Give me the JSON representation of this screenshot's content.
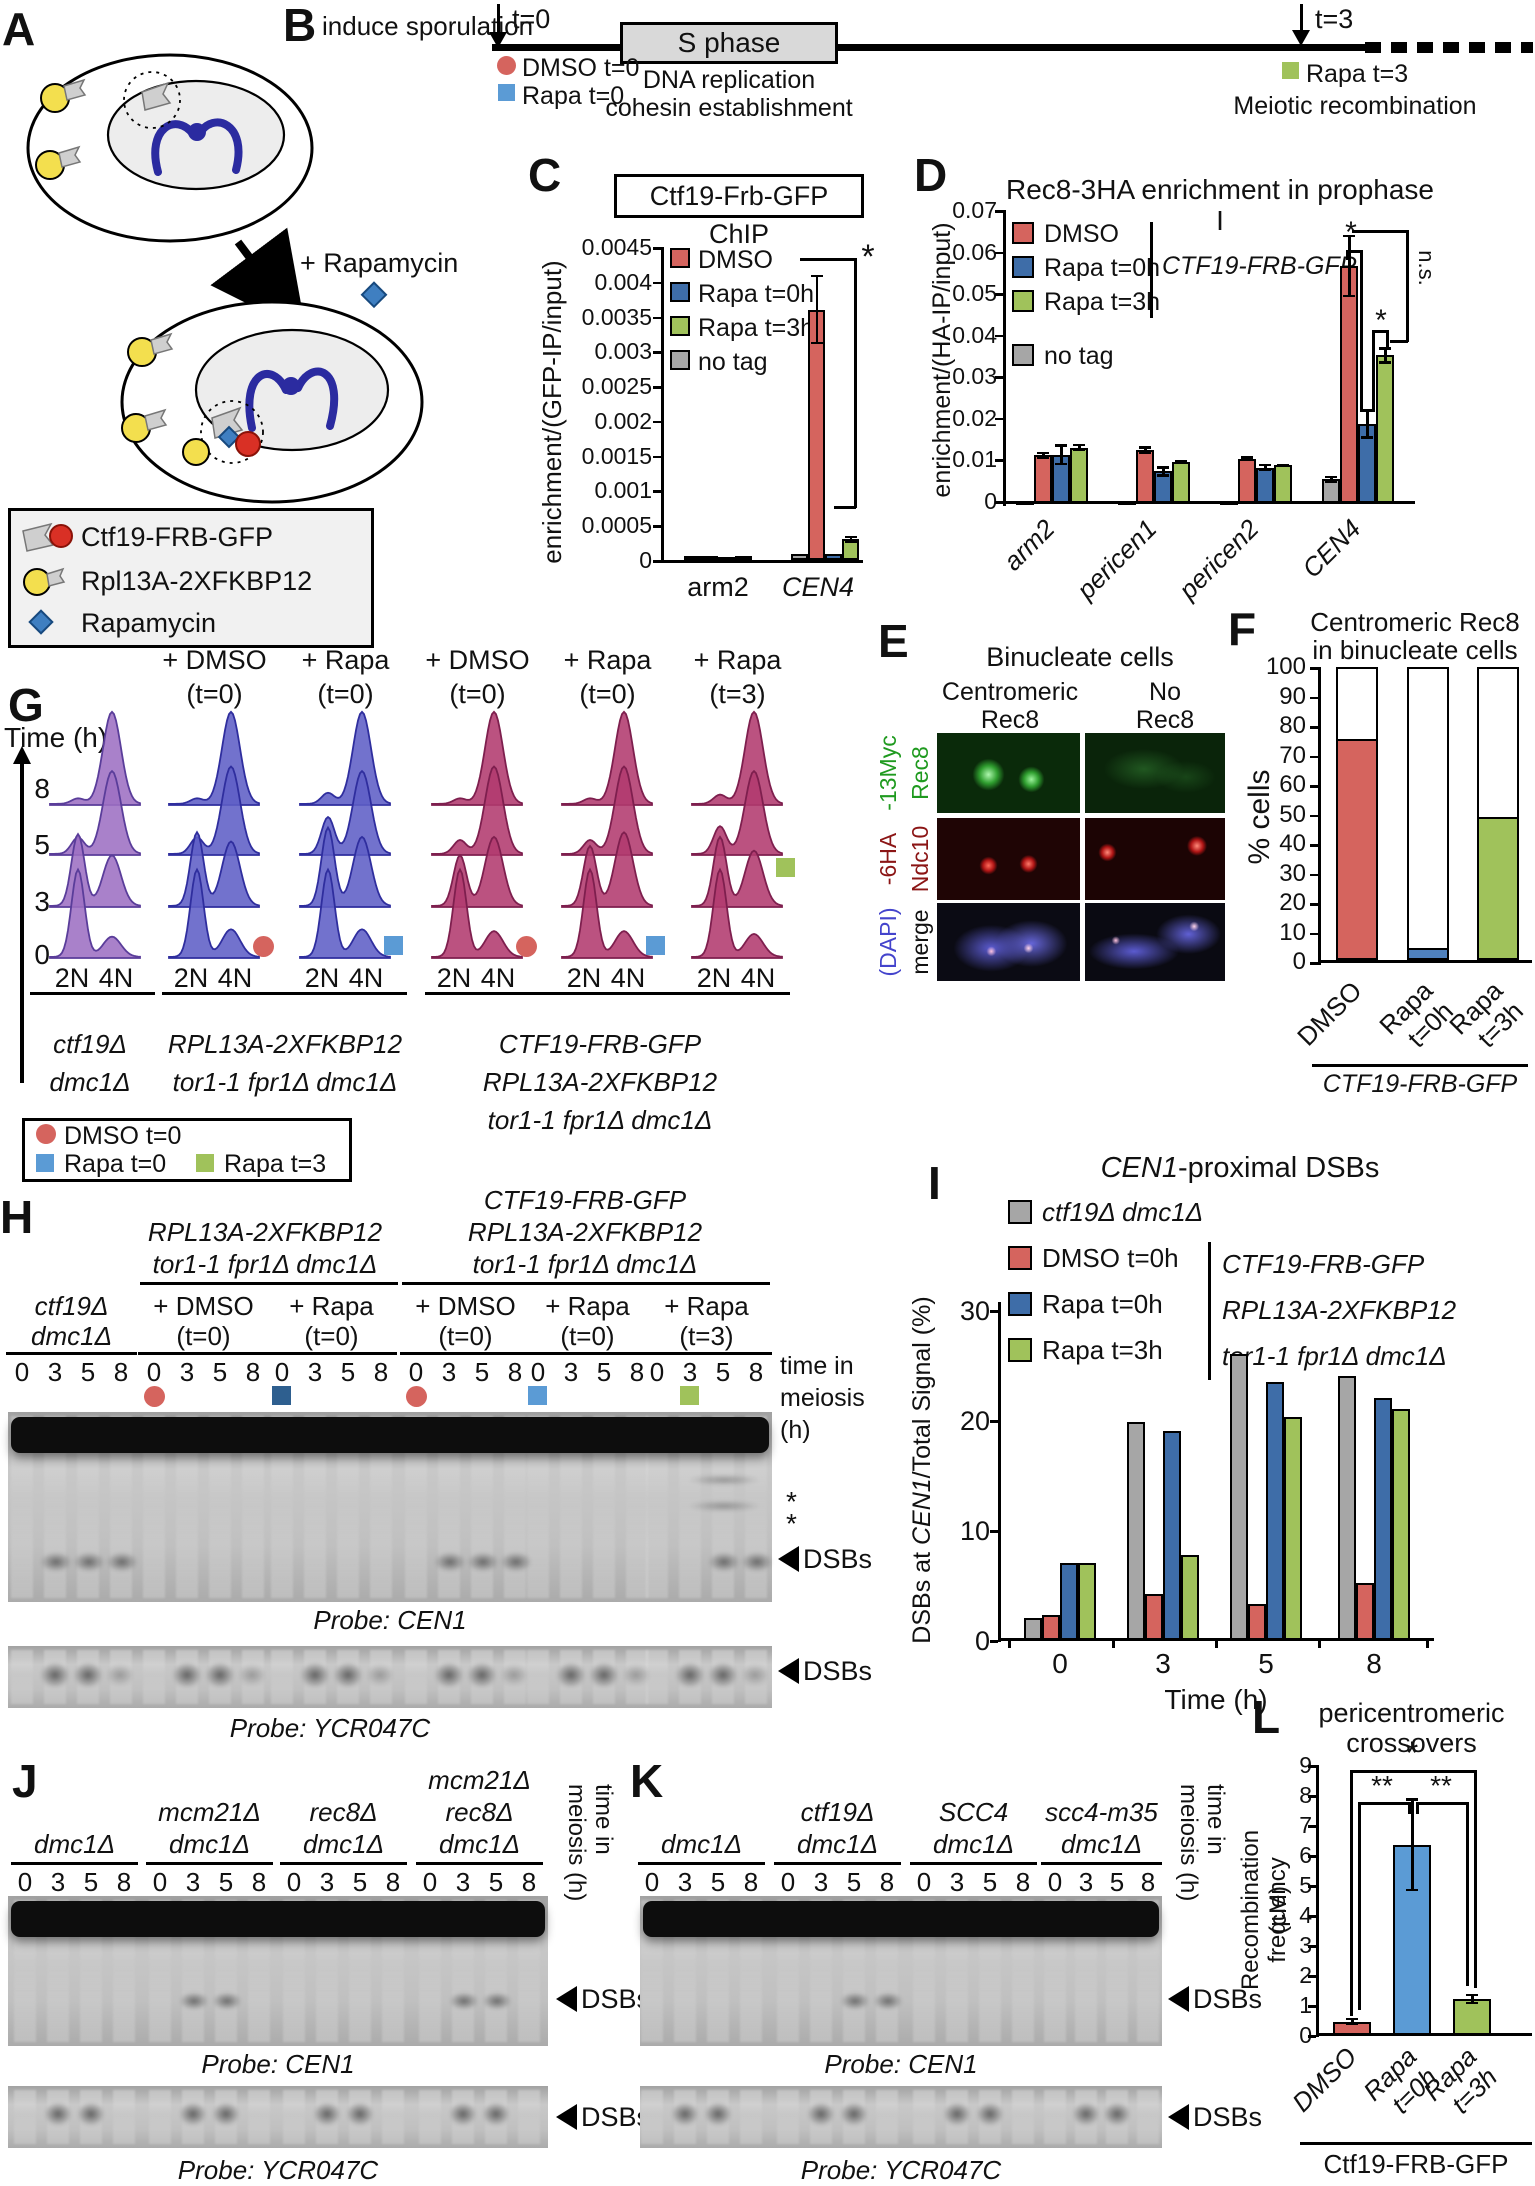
{
  "colors": {
    "red": "#d5645e",
    "blue": "#3e6da8",
    "lightblue": "#5b9bd5",
    "medblue": "#4f81bd",
    "darkblue": "#2e5f8f",
    "green": "#a0c25b",
    "gray": "#a6a6a6",
    "purple": "#9d6fc3",
    "purpleDark": "#5a3d9a",
    "indigo": "#5f5ec6",
    "indigoDark": "#2f2e9e",
    "crimson": "#b23a6e",
    "crimsonDark": "#7e1f4e",
    "micGreen": "#1f9a1f",
    "micRed": "#8b1515",
    "micBlue": "#4444cc"
  },
  "panelA": {
    "label": "A",
    "plus_rapamycin": "+ Rapamycin",
    "legend": [
      {
        "icon": "ctf19-frb-gfp-icon",
        "label": "Ctf19-FRB-GFP"
      },
      {
        "icon": "rpl13a-2xfkbp12-icon",
        "label": "Rpl13A-2XFKBP12"
      },
      {
        "icon": "rapamycin-icon",
        "label": "Rapamycin"
      }
    ]
  },
  "panelB": {
    "label": "B",
    "induce": "induce sporulation",
    "t0": "t=0",
    "t3": "t=3",
    "s_phase": "S phase",
    "dmso_t0": "DMSO t=0",
    "rapa_t0": "Rapa t=0",
    "rapa_t3": "Rapa t=3",
    "dna": "DNA replication",
    "cohesin": "cohesin establishment",
    "meiotic": "Meiotic recombination"
  },
  "panelC": {
    "label": "C",
    "title": "Ctf19-Frb-GFP ChIP",
    "ylabel": "enrichment/(GFP-IP/input)",
    "yticks": [
      "0.0045",
      "0.004",
      "0.0035",
      "0.003",
      "0.0025",
      "0.002",
      "0.0015",
      "0.001",
      "0.0005",
      "0"
    ],
    "legend": [
      {
        "color": "red",
        "label": "DMSO"
      },
      {
        "color": "blue",
        "label": "Rapa t=0h"
      },
      {
        "color": "green",
        "label": "Rapa t=3h"
      },
      {
        "color": "gray",
        "label": "no tag"
      }
    ],
    "sig": "*"
  },
  "panelD": {
    "label": "D",
    "title": "Rec8-3HA enrichment in prophase I",
    "ylabel": "enrichment/(HA-IP/input)",
    "yticks": [
      "0.07",
      "0.06",
      "0.05",
      "0.04",
      "0.03",
      "0.02",
      "0.01",
      "0"
    ],
    "legend": [
      {
        "color": "red",
        "label": "DMSO"
      },
      {
        "color": "blue",
        "label": "Rapa t=0h"
      },
      {
        "color": "green",
        "label": "Rapa t=3h"
      }
    ],
    "legend_bracket": "CTF19-FRB-GFP",
    "no_tag": "no tag",
    "sig_red_blue": "*",
    "sig_blue_green": "*",
    "sig_ns": "n.s."
  },
  "panelE": {
    "label": "E",
    "title": "Binucleate cells",
    "col1": [
      "Centromeric",
      "Rec8"
    ],
    "col2": [
      "No",
      "Rec8"
    ],
    "rows": [
      {
        "name": "Rec8",
        "tag": "-13Myc",
        "name_color": "micGreen",
        "tag_color": "micGreen"
      },
      {
        "name": "Ndc10",
        "tag": "-6HA",
        "name_color": "micRed",
        "tag_color": "micRed"
      },
      {
        "name": "merge",
        "tag": "(DAPI)",
        "name_color": "#111111",
        "tag_color": "micBlue"
      }
    ]
  },
  "panelF": {
    "label": "F",
    "title": [
      "Centromeric Rec8",
      "in binucleate cells"
    ],
    "ylabel": "% cells",
    "yticks": [
      "100",
      "90",
      "80",
      "70",
      "60",
      "50",
      "40",
      "30",
      "20",
      "10",
      "0"
    ],
    "xlabel": "CTF19-FRB-GFP"
  },
  "panelG": {
    "label": "G",
    "time_label": "Time (h)",
    "times": [
      "8",
      "5",
      "3",
      "0"
    ],
    "xticks": [
      "2N",
      "4N"
    ],
    "columns": [
      {
        "header": null,
        "color": "purple",
        "peaks": {
          "0": [
            0.95,
            0.22
          ],
          "3": [
            0.78,
            0.55
          ],
          "5": [
            0.18,
            0.9
          ],
          "8": [
            0.06,
            1.0
          ]
        },
        "marker": null
      },
      {
        "header": [
          "+ DMSO",
          "(t=0)"
        ],
        "color": "indigo",
        "peaks": {
          "0": [
            0.95,
            0.3
          ],
          "3": [
            0.8,
            0.7
          ],
          "5": [
            0.18,
            0.95
          ],
          "8": [
            0.06,
            1.0
          ]
        },
        "marker": {
          "shape": "circle",
          "color": "red",
          "row": "0"
        }
      },
      {
        "header": [
          "+ Rapa",
          "(t=0)"
        ],
        "color": "indigo",
        "peaks": {
          "0": [
            0.95,
            0.3
          ],
          "3": [
            0.85,
            0.75
          ],
          "5": [
            0.4,
            0.9
          ],
          "8": [
            0.12,
            1.0
          ]
        },
        "marker": {
          "shape": "square",
          "color": "lightblue",
          "row": "0"
        }
      },
      {
        "header": [
          "+ DMSO",
          "(t=0)"
        ],
        "color": "crimson",
        "peaks": {
          "0": [
            0.95,
            0.28
          ],
          "3": [
            0.55,
            0.75
          ],
          "5": [
            0.15,
            0.95
          ],
          "8": [
            0.06,
            1.0
          ]
        },
        "marker": {
          "shape": "circle",
          "color": "red",
          "row": "0"
        }
      },
      {
        "header": [
          "+ Rapa",
          "(t=0)"
        ],
        "color": "crimson",
        "peaks": {
          "0": [
            0.95,
            0.28
          ],
          "3": [
            0.65,
            0.8
          ],
          "5": [
            0.15,
            0.95
          ],
          "8": [
            0.06,
            1.0
          ]
        },
        "marker": {
          "shape": "square",
          "color": "lightblue",
          "row": "0"
        }
      },
      {
        "header": [
          "+ Rapa",
          "(t=3)"
        ],
        "color": "crimson",
        "peaks": {
          "0": [
            0.95,
            0.25
          ],
          "3": [
            0.75,
            0.6
          ],
          "5": [
            0.3,
            0.9
          ],
          "8": [
            0.1,
            1.0
          ]
        },
        "marker": {
          "shape": "square",
          "color": "green",
          "row": "3"
        }
      }
    ],
    "groups": [
      {
        "cols": [
          0
        ],
        "lines": [
          "ctf19Δ",
          "dmc1Δ"
        ]
      },
      {
        "cols": [
          1,
          2
        ],
        "lines": [
          "RPL13A-2XFKBP12",
          "tor1-1 fpr1Δ dmc1Δ"
        ]
      },
      {
        "cols": [
          3,
          4,
          5
        ],
        "lines": [
          "CTF19-FRB-GFP",
          "RPL13A-2XFKBP12",
          "tor1-1 fpr1Δ dmc1Δ"
        ]
      }
    ],
    "legend": [
      {
        "shape": "circle",
        "color": "red",
        "label": "DMSO t=0"
      },
      {
        "shape": "square",
        "color": "lightblue",
        "label": "Rapa t=0"
      },
      {
        "shape": "square",
        "color": "green",
        "label": "Rapa t=3"
      }
    ]
  },
  "panelH": {
    "label": "H",
    "header_left": [
      "RPL13A-2XFKBP12",
      "tor1-1 fpr1Δ dmc1Δ"
    ],
    "header_right": [
      "CTF19-FRB-GFP",
      "RPL13A-2XFKBP12",
      "tor1-1 fpr1Δ dmc1Δ"
    ],
    "groups": [
      {
        "lines": [
          "ctf19Δ",
          "dmc1Δ"
        ],
        "italic": true,
        "marker": null
      },
      {
        "lines": [
          "+ DMSO",
          "(t=0)"
        ],
        "italic": false,
        "marker": {
          "shape": "circle",
          "color": "red",
          "lane": 0
        }
      },
      {
        "lines": [
          "+ Rapa",
          "(t=0)"
        ],
        "italic": false,
        "marker": {
          "shape": "square",
          "color": "darkblue",
          "lane": 0
        }
      },
      {
        "lines": [
          "+ DMSO",
          "(t=0)"
        ],
        "italic": false,
        "marker": {
          "shape": "circle",
          "color": "red",
          "lane": 0
        }
      },
      {
        "lines": [
          "+ Rapa",
          "(t=0)"
        ],
        "italic": false,
        "marker": {
          "shape": "square",
          "color": "lightblue",
          "lane": 0
        }
      },
      {
        "lines": [
          "+ Rapa",
          "(t=3)"
        ],
        "italic": false,
        "marker": {
          "shape": "square",
          "color": "green",
          "lane": 1
        }
      }
    ],
    "lanes": [
      "0",
      "3",
      "5",
      "8"
    ],
    "side": [
      "time in",
      "meiosis",
      "(h)"
    ],
    "asterisks": [
      "*",
      "*"
    ],
    "dsbs": "DSBs",
    "probe1": "Probe: CEN1",
    "probe2": "Probe: YCR047C"
  },
  "panelI": {
    "label": "I",
    "title_italic": "CEN1",
    "title_rest": "-proximal DSBs",
    "ylabel_parts": [
      "DSBs at ",
      "CEN1",
      "/Total Signal (%)"
    ],
    "yticks": [
      "30",
      "20",
      "10",
      "0"
    ],
    "legend_gray": "ctf19Δ dmc1Δ",
    "legend": [
      {
        "color": "red",
        "label": "DMSO t=0h"
      },
      {
        "color": "blue",
        "label": "Rapa t=0h"
      },
      {
        "color": "green",
        "label": "Rapa t=3h"
      }
    ],
    "legend_bracket": [
      "CTF19-FRB-GFP",
      "RPL13A-2XFKBP12",
      "tor1-1 fpr1Δ dmc1Δ"
    ],
    "xlabel": "Time (h)"
  },
  "panelJ": {
    "label": "J",
    "groups": [
      {
        "lines": [
          "dmc1Δ"
        ]
      },
      {
        "lines": [
          "mcm21Δ",
          "dmc1Δ"
        ]
      },
      {
        "lines": [
          "rec8Δ",
          "dmc1Δ"
        ]
      },
      {
        "lines": [
          "mcm21Δ",
          "rec8Δ",
          "dmc1Δ"
        ]
      }
    ],
    "lanes": [
      "0",
      "3",
      "5",
      "8"
    ],
    "side": [
      "time in",
      "meiosis (h)"
    ],
    "dsbs": "DSBs",
    "probe1": "Probe: CEN1",
    "probe2": "Probe: YCR047C"
  },
  "panelK": {
    "label": "K",
    "groups": [
      {
        "lines": [
          "dmc1Δ"
        ]
      },
      {
        "lines": [
          "ctf19Δ",
          "dmc1Δ"
        ]
      },
      {
        "lines": [
          "SCC4",
          "dmc1Δ"
        ]
      },
      {
        "lines": [
          "scc4-m35",
          "dmc1Δ"
        ]
      }
    ],
    "lanes": [
      "0",
      "3",
      "5",
      "8"
    ],
    "side": [
      "time in",
      "meiosis (h)"
    ],
    "dsbs": "DSBs",
    "probe1": "Probe: CEN1",
    "probe2": "Probe: YCR047C"
  },
  "panelL": {
    "label": "L",
    "title": [
      "pericentromeric",
      "crossovers"
    ],
    "ylabel": [
      "Recombination frequency",
      "(cM)"
    ],
    "yticks": [
      "9",
      "8",
      "7",
      "6",
      "5",
      "4",
      "3",
      "2",
      "1",
      "0"
    ],
    "sig_top": "*",
    "sig_left": "**",
    "sig_right": "**",
    "xlabel": "Ctf19-FRB-GFP"
  },
  "chart_data": [
    {
      "id": "C",
      "type": "bar",
      "title": "Ctf19-Frb-GFP ChIP",
      "ylabel": "enrichment/(GFP-IP/input)",
      "ylim": [
        0,
        0.0045
      ],
      "categories": [
        "arm2",
        "CEN4"
      ],
      "categories_italic": [
        false,
        true
      ],
      "series": [
        {
          "name": "no tag",
          "color": "gray",
          "values": [
            6e-05,
            9e-05
          ],
          "errors": [
            0,
            0
          ]
        },
        {
          "name": "DMSO",
          "color": "red",
          "values": [
            6e-05,
            0.0036
          ],
          "errors": [
            0,
            0.0005
          ]
        },
        {
          "name": "Rapa t=0h",
          "color": "blue",
          "values": [
            5e-05,
            9e-05
          ],
          "errors": [
            0,
            0
          ]
        },
        {
          "name": "Rapa t=3h",
          "color": "green",
          "values": [
            6e-05,
            0.0003
          ],
          "errors": [
            0,
            5e-05
          ]
        }
      ],
      "significance": "* DMSO vs controls at CEN4"
    },
    {
      "id": "D",
      "type": "bar",
      "title": "Rec8-3HA enrichment in prophase I",
      "ylabel": "enrichment/(HA-IP/input)",
      "ylim": [
        0,
        0.07
      ],
      "categories": [
        "arm2",
        "pericen1",
        "pericen2",
        "CEN4"
      ],
      "categories_italic": [
        true,
        true,
        true,
        true
      ],
      "series": [
        {
          "name": "no tag",
          "color": "gray",
          "values": [
            0.0004,
            0.0004,
            0.0004,
            0.0057
          ],
          "errors": [
            0,
            0,
            0,
            0.0008
          ]
        },
        {
          "name": "DMSO",
          "color": "red",
          "values": [
            0.0115,
            0.0127,
            0.0107,
            0.057
          ],
          "errors": [
            0.0008,
            0.0009,
            0.0005,
            0.0075
          ]
        },
        {
          "name": "Rapa t=0h",
          "color": "blue",
          "values": [
            0.0116,
            0.0076,
            0.0085,
            0.019
          ],
          "errors": [
            0.0025,
            0.0013,
            0.0009,
            0.0035
          ]
        },
        {
          "name": "Rapa t=3h",
          "color": "green",
          "values": [
            0.0133,
            0.0099,
            0.0092,
            0.0355
          ],
          "errors": [
            0.0009,
            0.0004,
            0.0003,
            0.002
          ]
        }
      ],
      "significance": "* DMSO vs Rapa t=0h; * Rapa t=0h vs Rapa t=3h; n.s. DMSO vs Rapa t=3h (at CEN4)"
    },
    {
      "id": "F",
      "type": "bar",
      "title": "Centromeric Rec8 in binucleate cells",
      "ylabel": "% cells",
      "ylim": [
        0,
        100
      ],
      "categories": [
        "DMSO",
        "Rapa t=0h",
        "Rapa t=3h"
      ],
      "values": [
        75,
        4,
        48.5
      ],
      "colors": [
        "red",
        "medblue",
        "green"
      ]
    },
    {
      "id": "I",
      "type": "bar",
      "title": "CEN1-proximal DSBs",
      "ylabel": "DSBs at CEN1/Total Signal (%)",
      "ylim": [
        0,
        30
      ],
      "xlabel": "Time (h)",
      "categories": [
        "0",
        "3",
        "5",
        "8"
      ],
      "series": [
        {
          "name": "ctf19Δ dmc1Δ",
          "color": "gray",
          "values": [
            2,
            19.8,
            26,
            24
          ]
        },
        {
          "name": "DMSO t=0h",
          "color": "red",
          "values": [
            2.3,
            4.2,
            3.3,
            5.2
          ]
        },
        {
          "name": "Rapa t=0h",
          "color": "blue",
          "values": [
            7,
            19,
            23.5,
            22
          ]
        },
        {
          "name": "Rapa t=3h",
          "color": "green",
          "values": [
            7,
            7.7,
            20.3,
            21
          ]
        }
      ]
    },
    {
      "id": "L",
      "type": "bar",
      "title": "pericentromeric crossovers",
      "ylabel": "Recombination frequency (cM)",
      "ylim": [
        0,
        9
      ],
      "categories": [
        "DMSO",
        "Rapa t=0h",
        "Rapa t=3h"
      ],
      "values": [
        0.45,
        6.35,
        1.2
      ],
      "errors": [
        0.12,
        1.55,
        0.18
      ],
      "colors": [
        "red",
        "lightblue",
        "green"
      ],
      "significance": "** DMSO vs Rapa t=0h; ** Rapa t=0h vs Rapa t=3h; * DMSO vs Rapa t=3h"
    }
  ]
}
